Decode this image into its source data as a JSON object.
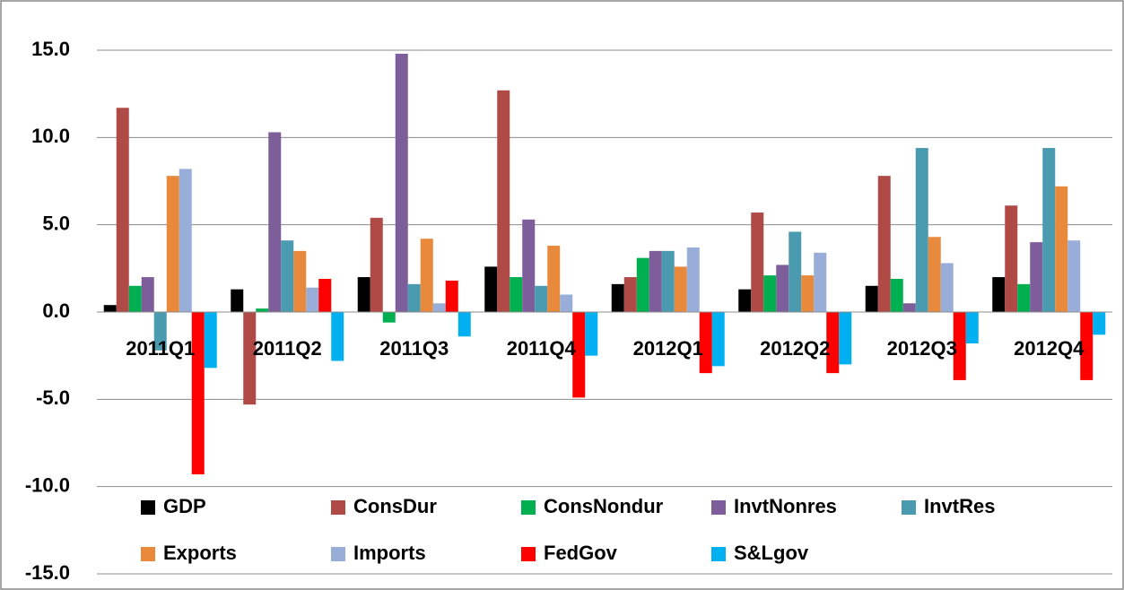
{
  "chart_data": {
    "type": "bar",
    "categories": [
      "2011Q1",
      "2011Q2",
      "2011Q3",
      "2011Q4",
      "2012Q1",
      "2012Q2",
      "2012Q3",
      "2012Q4"
    ],
    "series": [
      {
        "name": "GDP",
        "color": "#000000",
        "values": [
          0.4,
          1.3,
          2.0,
          2.6,
          1.6,
          1.3,
          1.5,
          2.0
        ]
      },
      {
        "name": "ConsDur",
        "color": "#b04a46",
        "values": [
          11.7,
          -5.3,
          5.4,
          12.7,
          2.0,
          5.7,
          7.8,
          6.1
        ]
      },
      {
        "name": "ConsNondur",
        "color": "#00b050",
        "values": [
          1.5,
          0.2,
          -0.6,
          2.0,
          3.1,
          2.1,
          1.9,
          1.6
        ]
      },
      {
        "name": "InvtNonres",
        "color": "#7d5d9a",
        "values": [
          2.0,
          10.3,
          14.8,
          5.3,
          3.5,
          2.7,
          0.5,
          4.0
        ]
      },
      {
        "name": "InvtRes",
        "color": "#4b9bb0",
        "values": [
          -2.2,
          4.1,
          1.6,
          1.5,
          3.5,
          4.6,
          9.4,
          9.4
        ]
      },
      {
        "name": "Exports",
        "color": "#e8893b",
        "values": [
          7.8,
          3.5,
          4.2,
          3.8,
          2.6,
          2.1,
          4.3,
          7.2
        ]
      },
      {
        "name": "Imports",
        "color": "#98aed8",
        "values": [
          8.2,
          1.4,
          0.5,
          1.0,
          3.7,
          3.4,
          2.8,
          4.1
        ]
      },
      {
        "name": "FedGov",
        "color": "#ff0000",
        "values": [
          -9.3,
          1.9,
          1.8,
          -4.9,
          -3.5,
          -3.5,
          -3.9,
          -3.9
        ]
      },
      {
        "name": "S&Lgov",
        "color": "#00b0f0",
        "values": [
          -3.2,
          -2.8,
          -1.4,
          -2.5,
          -3.1,
          -3.0,
          -1.8,
          -1.3
        ]
      }
    ],
    "ylim": [
      -15,
      15
    ],
    "yticks": [
      {
        "value": -15,
        "label": "-15.0"
      },
      {
        "value": -10,
        "label": "-10.0"
      },
      {
        "value": -5,
        "label": "-5.0"
      },
      {
        "value": 0,
        "label": "0.0"
      },
      {
        "value": 5,
        "label": "5.0"
      },
      {
        "value": 10,
        "label": "10.0"
      },
      {
        "value": 15,
        "label": "15.0"
      }
    ],
    "grid": true,
    "legend": "bottom"
  }
}
